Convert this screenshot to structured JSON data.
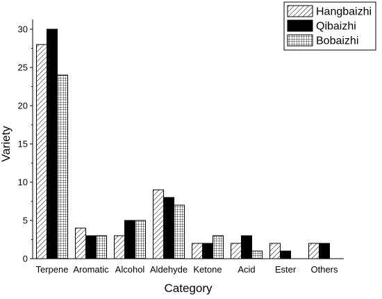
{
  "chart_data": {
    "type": "bar",
    "xlabel": "Category",
    "ylabel": "Variety",
    "categories": [
      "Terpene",
      "Aromatic",
      "Alcohol",
      "Aldehyde",
      "Ketone",
      "Acid",
      "Ester",
      "Others"
    ],
    "ylim": [
      0,
      30
    ],
    "yticks": [
      0,
      5,
      10,
      15,
      20,
      25,
      30
    ],
    "grid": false,
    "legend_position": "top-right",
    "series": [
      {
        "name": "Hangbaizhi",
        "pattern": "diagonal-hatch",
        "values": [
          28,
          4,
          3,
          9,
          2,
          2,
          2,
          2
        ]
      },
      {
        "name": "Qibaizhi",
        "pattern": "solid-black",
        "values": [
          30,
          3,
          5,
          8,
          2,
          3,
          1,
          2
        ]
      },
      {
        "name": "Bobaizhi",
        "pattern": "grid-crosshatch",
        "values": [
          24,
          3,
          5,
          7,
          3,
          1,
          0,
          0
        ]
      }
    ],
    "colors": {
      "bar_fill": "#000000",
      "background": "#ffffff",
      "axis": "#000000"
    }
  }
}
